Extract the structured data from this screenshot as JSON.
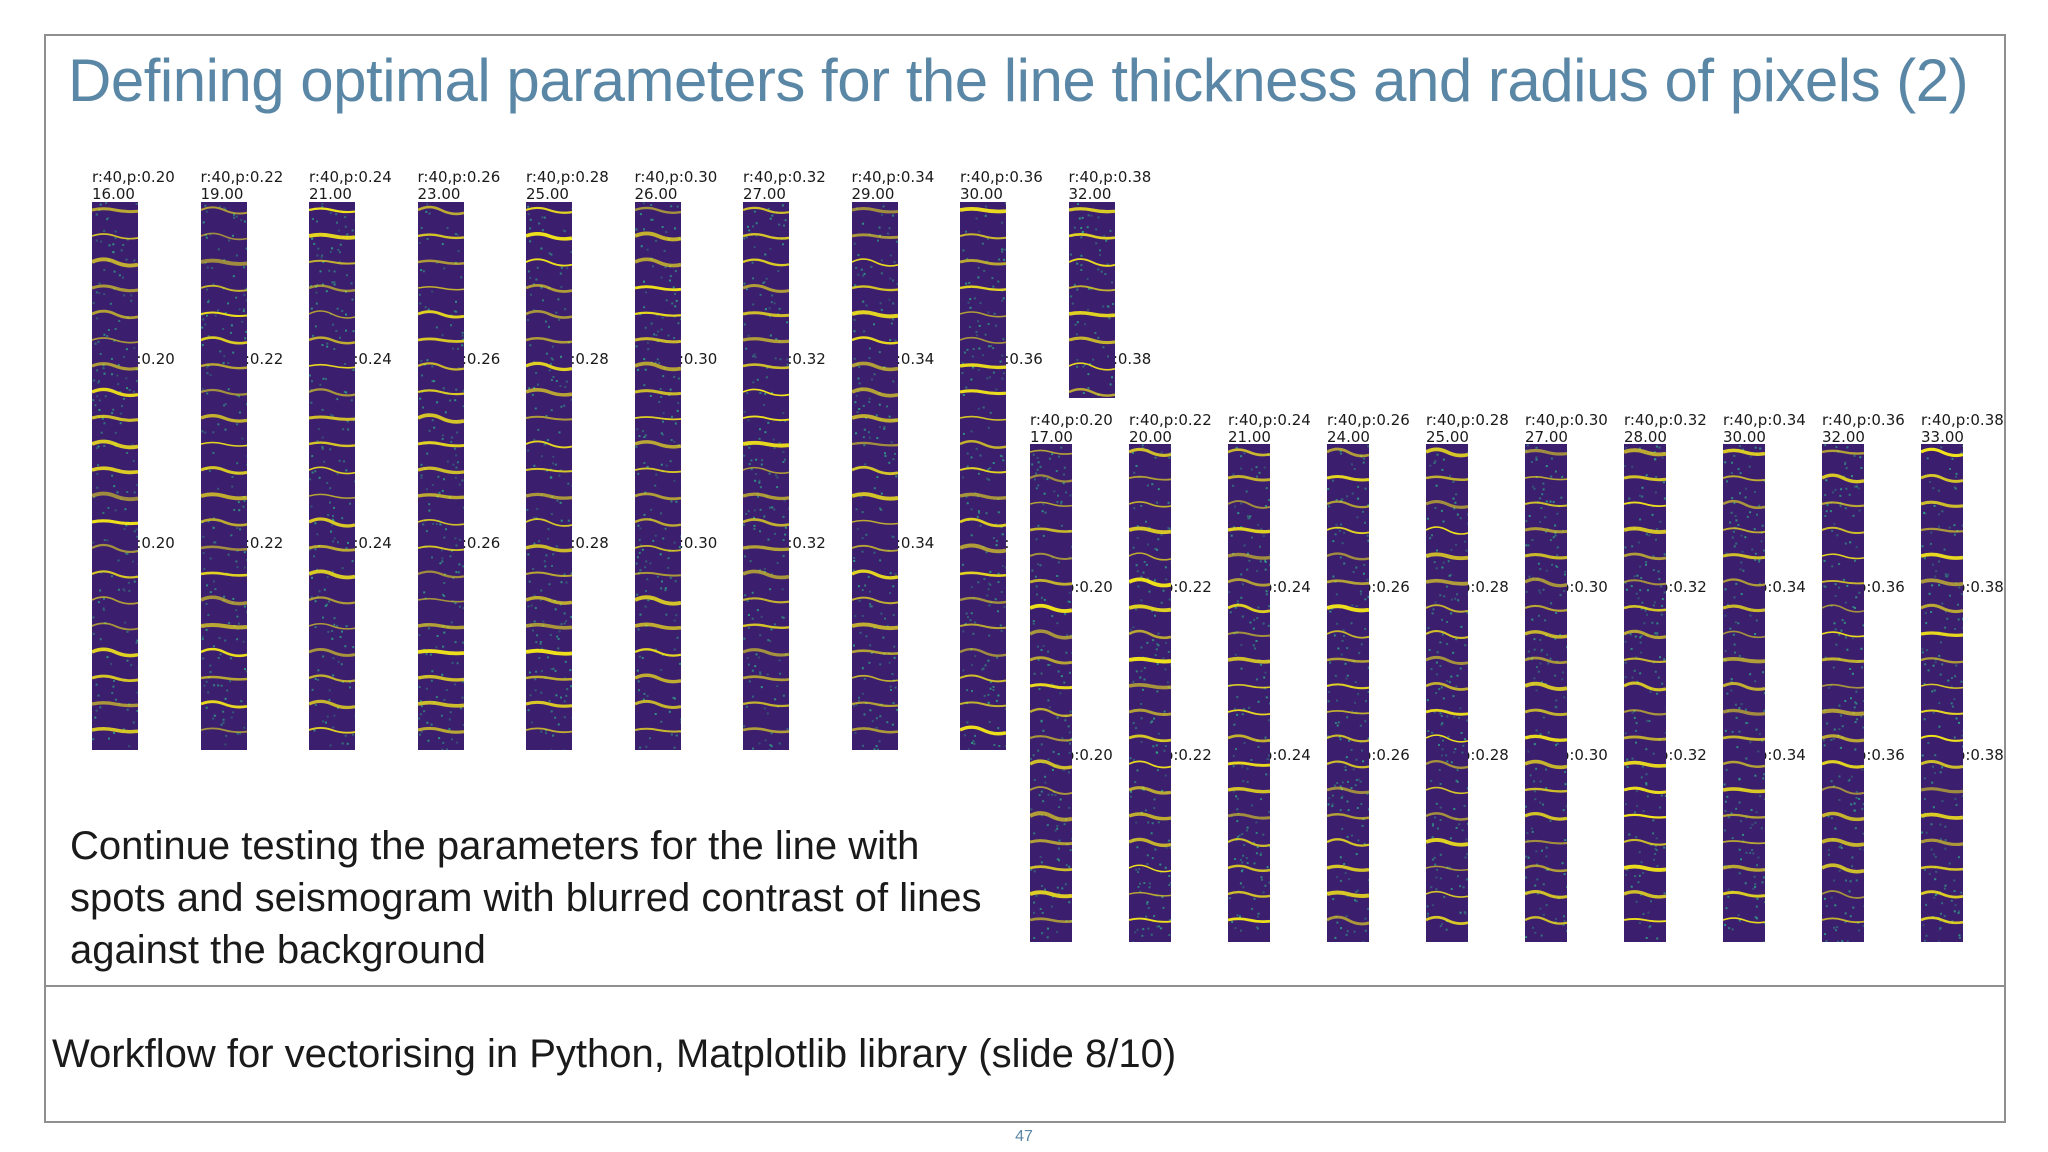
{
  "slide": {
    "title": "Defining optimal parameters for the line thickness and radius of pixels (2)",
    "body_text": "Continue testing the parameters for the line with spots and seismogram with blurred contrast of lines against the background",
    "footer": "Workflow for vectorising in Python, Matplotlib library (slide 8/10)",
    "page_number": "47"
  },
  "grid_a": {
    "columns": [
      {
        "row1_label": "r:40,p:0.20",
        "row1_value": "16.00",
        "row2_label": "r:50,p:0.20",
        "row3_label": "r:60,p:0.20"
      },
      {
        "row1_label": "r:40,p:0.22",
        "row1_value": "19.00",
        "row2_label": "r:50,p:0.22",
        "row3_label": "r:60,p:0.22"
      },
      {
        "row1_label": "r:40,p:0.24",
        "row1_value": "21.00",
        "row2_label": "r:50,p:0.24",
        "row3_label": "r:60,p:0.24"
      },
      {
        "row1_label": "r:40,p:0.26",
        "row1_value": "23.00",
        "row2_label": "r:50,p:0.26",
        "row3_label": "r:60,p:0.26"
      },
      {
        "row1_label": "r:40,p:0.28",
        "row1_value": "25.00",
        "row2_label": "r:50,p:0.28",
        "row3_label": "r:60,p:0.28"
      },
      {
        "row1_label": "r:40,p:0.30",
        "row1_value": "26.00",
        "row2_label": "r:50,p:0.30",
        "row3_label": "r:60,p:0.30"
      },
      {
        "row1_label": "r:40,p:0.32",
        "row1_value": "27.00",
        "row2_label": "r:50,p:0.32",
        "row3_label": "r:60,p:0.32"
      },
      {
        "row1_label": "r:40,p:0.34",
        "row1_value": "29.00",
        "row2_label": "r:50,p:0.34",
        "row3_label": "r:60,p:0.34"
      },
      {
        "row1_label": "r:40,p:0.36",
        "row1_value": "30.00",
        "row2_label": "r:50,p:0.36",
        "row3_label": "r:60,p:"
      },
      {
        "row1_label": "r:40,p:0.38",
        "row1_value": "32.00",
        "row2_label": "r:50,p:0.38",
        "row3_label": ""
      }
    ]
  },
  "grid_b": {
    "columns": [
      {
        "row1_label": "r:40,p:0.20",
        "row1_value": "17.00",
        "row2_label": "r:50,p:0.20",
        "row3_label": "r:60,p:0.20"
      },
      {
        "row1_label": "r:40,p:0.22",
        "row1_value": "20.00",
        "row2_label": "r:50,p:0.22",
        "row3_label": "r:60,p:0.22"
      },
      {
        "row1_label": "r:40,p:0.24",
        "row1_value": "21.00",
        "row2_label": "r:50,p:0.24",
        "row3_label": "r:60,p:0.24"
      },
      {
        "row1_label": "r:40,p:0.26",
        "row1_value": "24.00",
        "row2_label": "r:50,p:0.26",
        "row3_label": "r:60,p:0.26"
      },
      {
        "row1_label": "r:40,p:0.28",
        "row1_value": "25.00",
        "row2_label": "r:50,p:0.28",
        "row3_label": "r:60,p:0.28"
      },
      {
        "row1_label": "r:40,p:0.30",
        "row1_value": "27.00",
        "row2_label": "r:50,p:0.30",
        "row3_label": "r:60,p:0.30"
      },
      {
        "row1_label": "r:40,p:0.32",
        "row1_value": "28.00",
        "row2_label": "r:50,p:0.32",
        "row3_label": "r:60,p:0.32"
      },
      {
        "row1_label": "r:40,p:0.34",
        "row1_value": "30.00",
        "row2_label": "r:50,p:0.34",
        "row3_label": "r:60,p:0.34"
      },
      {
        "row1_label": "r:40,p:0.36",
        "row1_value": "32.00",
        "row2_label": "r:50,p:0.36",
        "row3_label": "r:60,p:0.36"
      },
      {
        "row1_label": "r:40,p:0.38",
        "row1_value": "33.00",
        "row2_label": "r:50,p:0.38",
        "row3_label": "r:60,p:0.38"
      }
    ]
  },
  "colors": {
    "title": "#5a87a6",
    "seismogram_background": "#3b1f6e",
    "seismogram_line": "#f2e31b",
    "seismogram_noise": "#2fb08a"
  }
}
